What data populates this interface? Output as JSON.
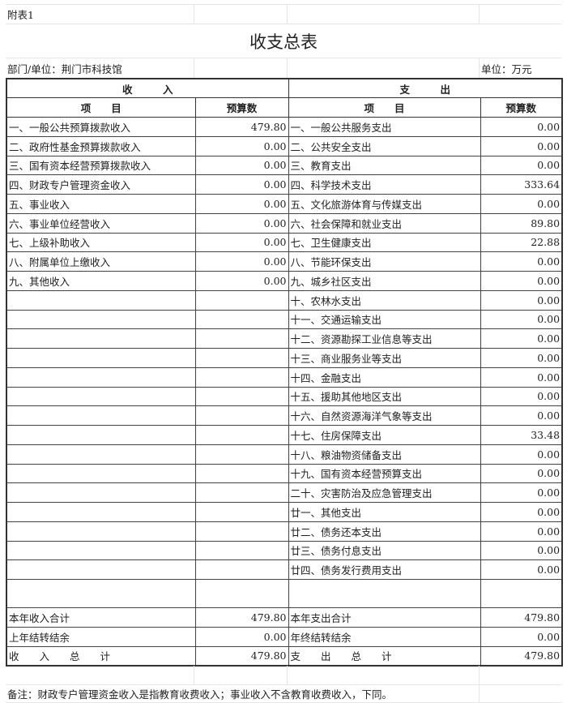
{
  "attachment": "附表1",
  "title": "收支总表",
  "department": "部门/单位：荆门市科技馆",
  "unit": "单位：万元",
  "header": {
    "income": "收　　　入",
    "expense": "支　　　出",
    "item": "项　　目",
    "budget": "预算数"
  },
  "rows": [
    [
      "一、一般公共预算拨款收入",
      "479.80",
      "一、一般公共服务支出",
      "0.00"
    ],
    [
      "二、政府性基金预算拨款收入",
      "0.00",
      "二、公共安全支出",
      "0.00"
    ],
    [
      "三、国有资本经营预算拨款收入",
      "0.00",
      "三、教育支出",
      "0.00"
    ],
    [
      "四、财政专户管理资金收入",
      "0.00",
      "四、科学技术支出",
      "333.64"
    ],
    [
      "五、事业收入",
      "0.00",
      "五、文化旅游体育与传媒支出",
      "0.00"
    ],
    [
      "六、事业单位经营收入",
      "0.00",
      "六、社会保障和就业支出",
      "89.80"
    ],
    [
      "七、上级补助收入",
      "0.00",
      "七、卫生健康支出",
      "22.88"
    ],
    [
      "八、附属单位上缴收入",
      "0.00",
      "八、节能环保支出",
      "0.00"
    ],
    [
      "九、其他收入",
      "0.00",
      "九、城乡社区支出",
      "0.00"
    ],
    [
      "",
      "",
      "十、农林水支出",
      "0.00"
    ],
    [
      "",
      "",
      "十一、交通运输支出",
      "0.00"
    ],
    [
      "",
      "",
      "十二、资源勘探工业信息等支出",
      "0.00"
    ],
    [
      "",
      "",
      "十三、商业服务业等支出",
      "0.00"
    ],
    [
      "",
      "",
      "十四、金融支出",
      "0.00"
    ],
    [
      "",
      "",
      "十五、援助其他地区支出",
      "0.00"
    ],
    [
      "",
      "",
      "十六、自然资源海洋气象等支出",
      "0.00"
    ],
    [
      "",
      "",
      "十七、住房保障支出",
      "33.48"
    ],
    [
      "",
      "",
      "十八、粮油物资储备支出",
      "0.00"
    ],
    [
      "",
      "",
      "十九、国有资本经营预算支出",
      "0.00"
    ],
    [
      "",
      "",
      "二十、灾害防治及应急管理支出",
      "0.00"
    ],
    [
      "",
      "",
      "廿一、其他支出",
      "0.00"
    ],
    [
      "",
      "",
      "廿二、债务还本支出",
      "0.00"
    ],
    [
      "",
      "",
      "廿三、债务付息支出",
      "0.00"
    ],
    [
      "",
      "",
      "廿四、债务发行费用支出",
      "0.00"
    ]
  ],
  "totals": [
    [
      "本年收入合计",
      "479.80",
      "本年支出合计",
      "479.80"
    ],
    [
      "上年结转结余",
      "0.00",
      "年终结转结余",
      "0.00"
    ],
    [
      "收　　入　　总　　计",
      "479.80",
      "支　　出　　总　　计",
      "479.80"
    ]
  ],
  "note": "备注：财政专户管理资金收入是指教育收费收入；事业收入不含教育收费收入，下同。"
}
